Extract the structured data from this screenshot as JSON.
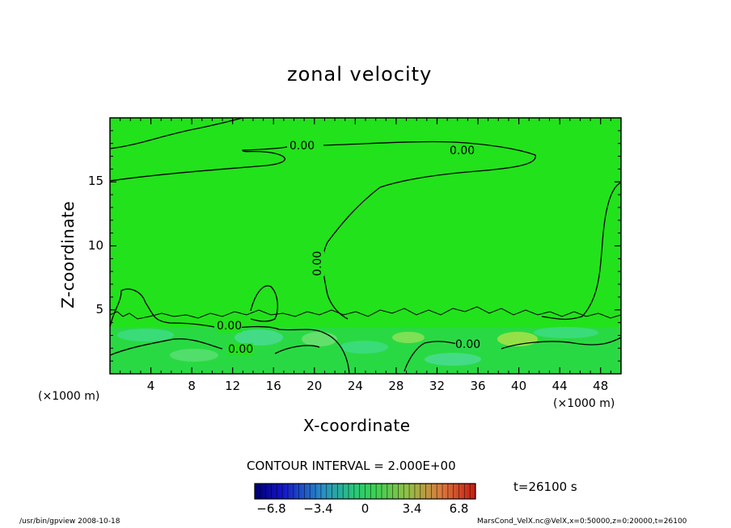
{
  "chart_data": {
    "type": "heatmap",
    "title": "zonal velocity",
    "xlabel": "X-coordinate",
    "ylabel": "Z-coordinate",
    "x_unit": "(×1000 m)",
    "y_unit": "(×1000 m)",
    "xlim": [
      0,
      50
    ],
    "ylim": [
      0,
      20
    ],
    "x_ticks": [
      4,
      8,
      12,
      16,
      20,
      24,
      28,
      32,
      36,
      40,
      44,
      48
    ],
    "x_tick_labels": [
      "4",
      "8",
      "12",
      "16",
      "20",
      "24",
      "28",
      "32",
      "36",
      "40",
      "44",
      "48"
    ],
    "y_ticks": [
      5,
      10,
      15
    ],
    "y_tick_labels": [
      "5",
      "10",
      "15"
    ],
    "contour_interval_text": "CONTOUR INTERVAL = 2.000E+00",
    "contour_labels": [
      "0.00",
      "0.00",
      "0.00",
      "0.00",
      "0.00",
      "0.00"
    ],
    "colorbar": {
      "min": -8,
      "max": 8,
      "tick_values": [
        -6.8,
        -3.4,
        0,
        3.4,
        6.8
      ],
      "tick_labels": [
        "−6.8",
        "−3.4",
        "0",
        "3.4",
        "6.8"
      ]
    },
    "background_value_color": "#22e21b",
    "time_text": "t=26100 s"
  },
  "footer": {
    "left": "/usr/bin/gpview   2008-10-18",
    "right": "MarsCond_VelX.nc@VelX,x=0:50000,z=0:20000,t=26100"
  }
}
